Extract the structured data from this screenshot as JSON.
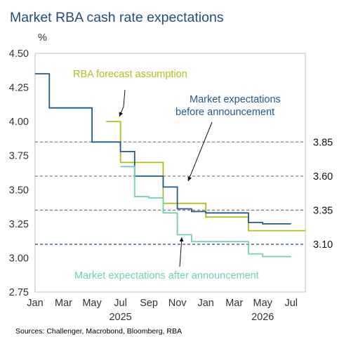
{
  "chart_data": {
    "type": "line",
    "title": "Market RBA cash rate expectations",
    "ylabel": "%",
    "ylim": [
      2.75,
      4.5
    ],
    "yticks": [
      "2.75",
      "3.00",
      "3.25",
      "3.50",
      "3.75",
      "4.00",
      "4.25",
      "4.50"
    ],
    "xlim": [
      "2025-01",
      "2026-08"
    ],
    "xticks": [
      "Jan",
      "Mar",
      "May",
      "Jul",
      "Sep",
      "Nov",
      "Jan",
      "Mar",
      "May",
      "Jul"
    ],
    "year_labels": [
      "2025",
      "2026"
    ],
    "reference_lines": [
      {
        "value": 3.85,
        "label": "3.85",
        "color": "#808080"
      },
      {
        "value": 3.6,
        "label": "3.60",
        "color": "#808080"
      },
      {
        "value": 3.35,
        "label": "3.35",
        "color": "#808080"
      },
      {
        "value": 3.1,
        "label": "3.10",
        "color": "#1f4e79"
      }
    ],
    "series": [
      {
        "name": "RBA forecast assumption",
        "color": "#b5bd1a",
        "step_points": [
          [
            "2025-06",
            4.0
          ],
          [
            "2025-07",
            3.7
          ],
          [
            "2025-10",
            3.4
          ],
          [
            "2026-01",
            3.3
          ],
          [
            "2026-04",
            3.2
          ],
          [
            "2026-08",
            3.2
          ]
        ]
      },
      {
        "name": "Market expectations before announcement",
        "color": "#1f5c8e",
        "step_points": [
          [
            "2025-01",
            4.35
          ],
          [
            "2025-02",
            4.1
          ],
          [
            "2025-05",
            3.85
          ],
          [
            "2025-07",
            3.78
          ],
          [
            "2025-08",
            3.6
          ],
          [
            "2025-10",
            3.52
          ],
          [
            "2025-11",
            3.36
          ],
          [
            "2025-12",
            3.34
          ],
          [
            "2026-01",
            3.33
          ],
          [
            "2026-04",
            3.26
          ],
          [
            "2026-05",
            3.25
          ],
          [
            "2026-07",
            3.25
          ]
        ]
      },
      {
        "name": "Market expectations after announcement",
        "color": "#6fd3b2",
        "step_points": [
          [
            "2025-07",
            3.67
          ],
          [
            "2025-08",
            3.45
          ],
          [
            "2025-09",
            3.44
          ],
          [
            "2025-10",
            3.33
          ],
          [
            "2025-11",
            3.17
          ],
          [
            "2025-12",
            3.12
          ],
          [
            "2026-04",
            3.03
          ],
          [
            "2026-05",
            3.01
          ],
          [
            "2026-07",
            3.01
          ]
        ]
      }
    ],
    "annotations": [
      {
        "text": "RBA forecast assumption",
        "series": 0
      },
      {
        "text": "Market expectations",
        "text2": "before announcement",
        "series": 1
      },
      {
        "text": "Market expectations after announcement",
        "series": 2
      }
    ],
    "source": "Sources: Challenger, Macrobond, Bloomberg, RBA"
  }
}
